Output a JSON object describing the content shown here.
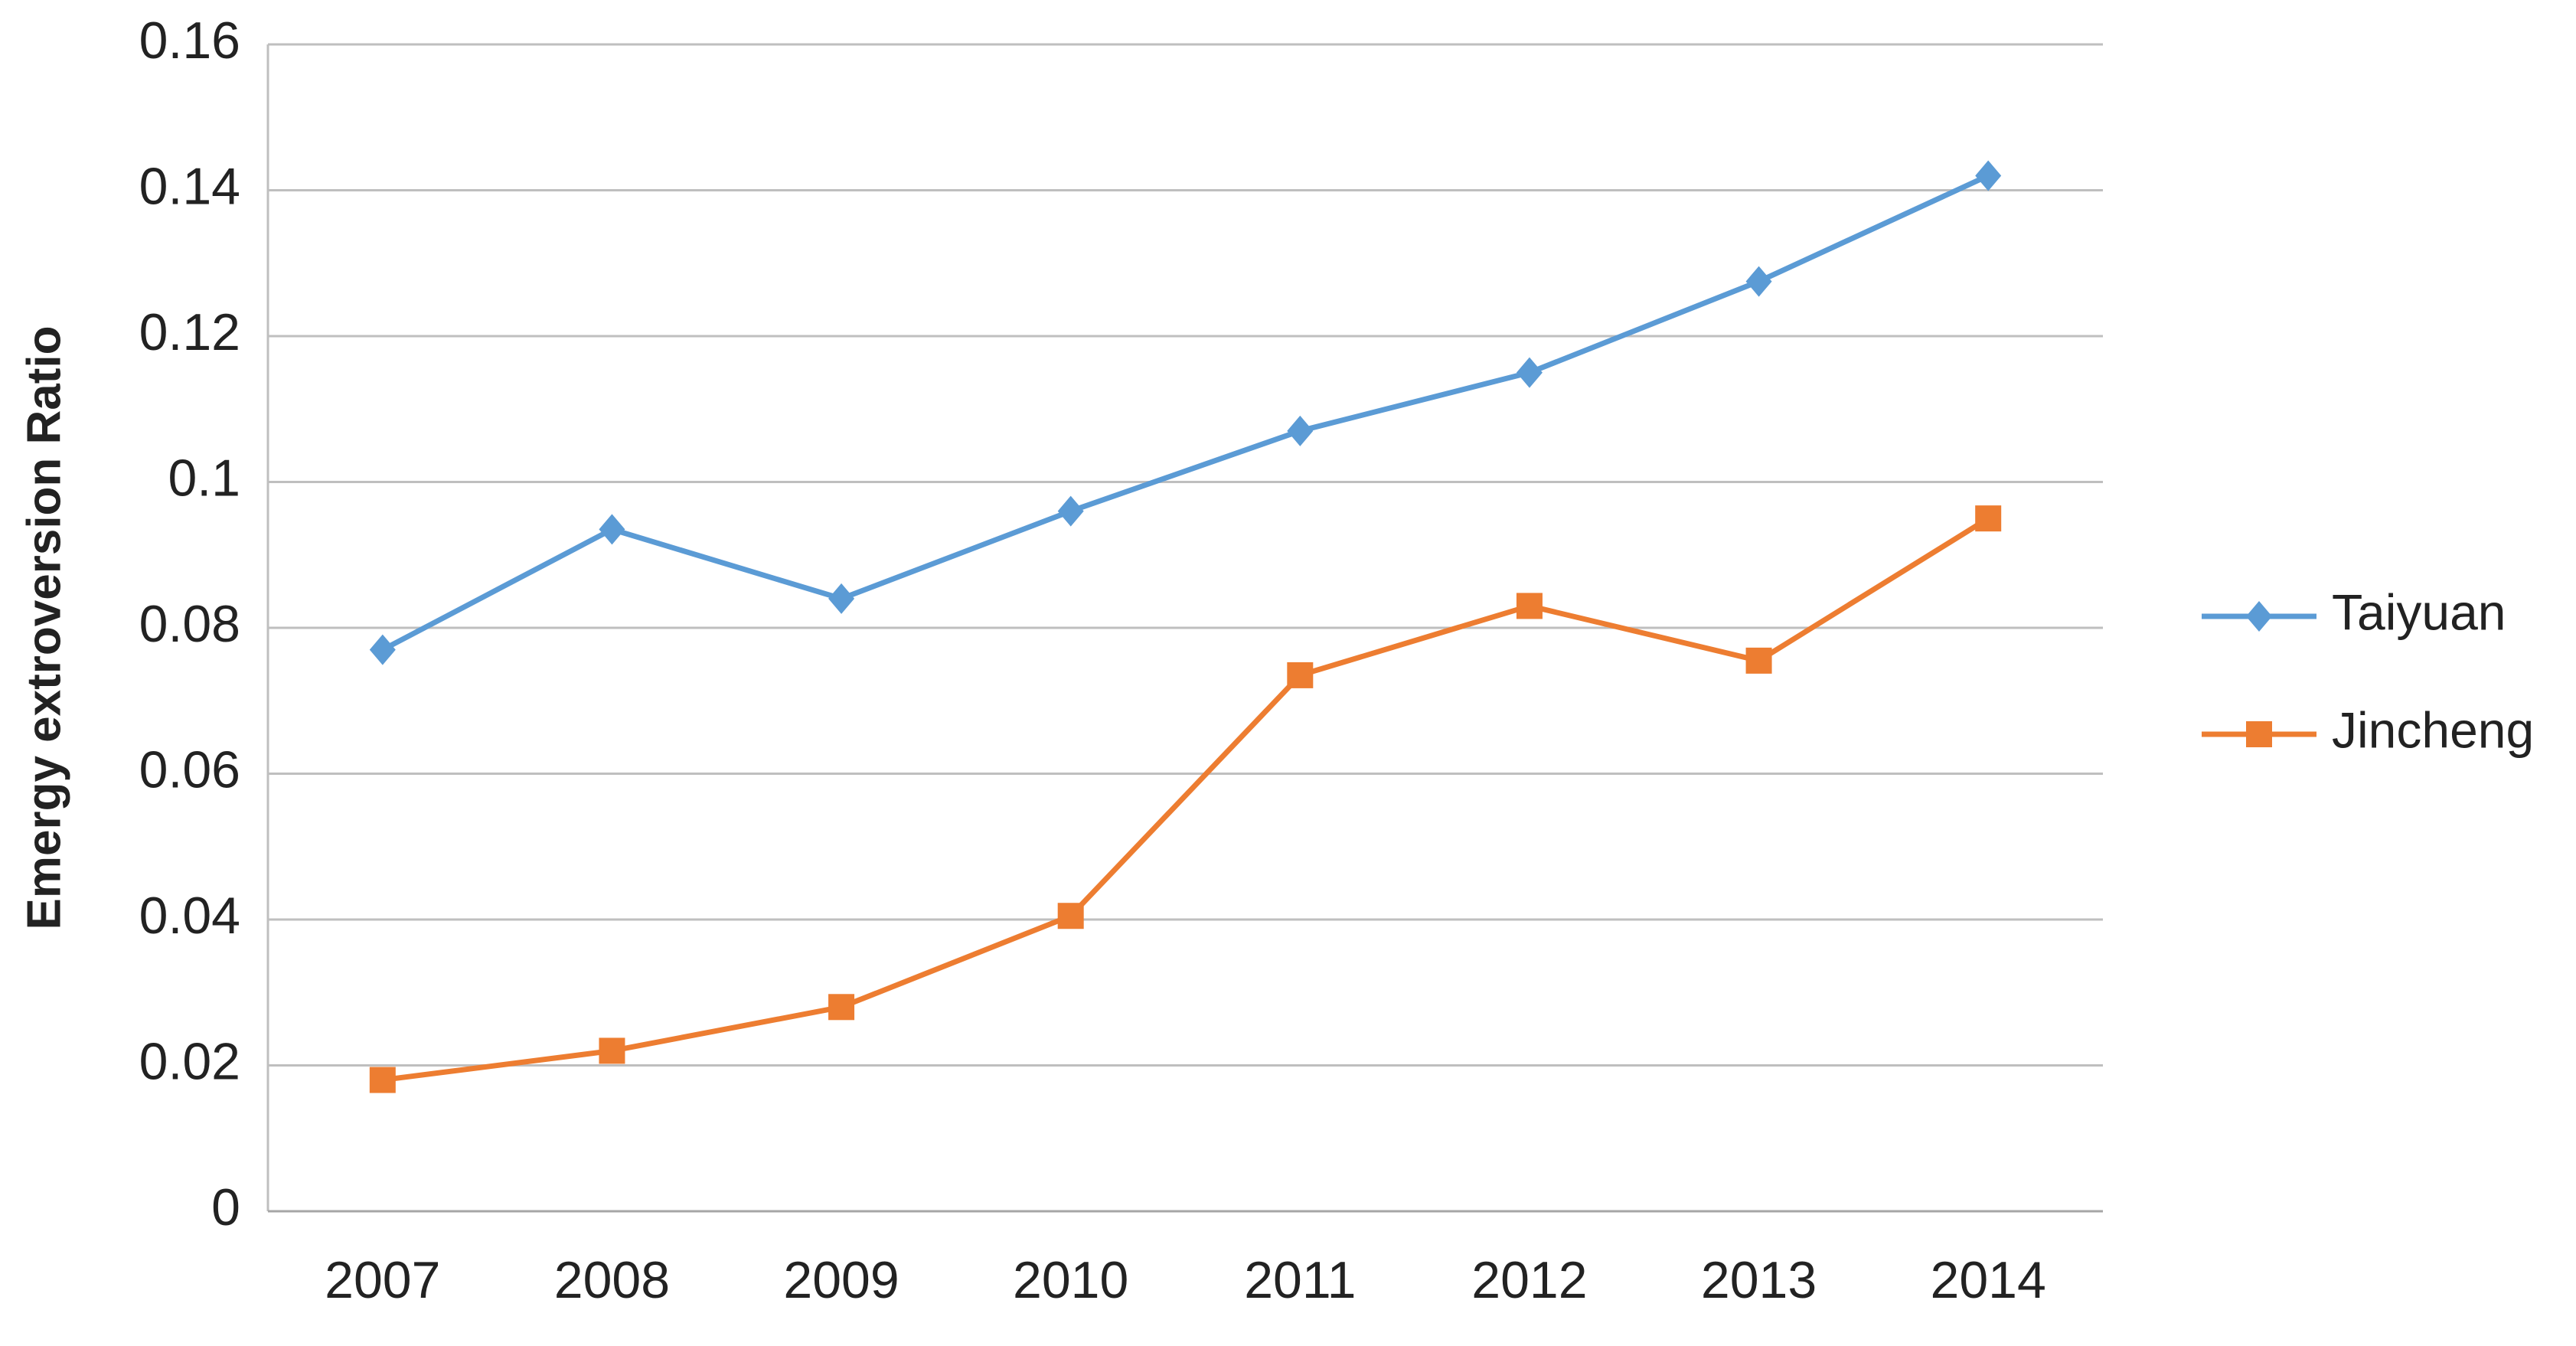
{
  "chart_data": {
    "type": "line",
    "y_label": "Emergy extroversion Ratio",
    "categories": [
      "2007",
      "2008",
      "2009",
      "2010",
      "2011",
      "2012",
      "2013",
      "2014"
    ],
    "series": [
      {
        "name": "Taiyuan",
        "color": "#5b9bd5",
        "marker": "diamond",
        "values": [
          0.077,
          0.0935,
          0.084,
          0.096,
          0.107,
          0.115,
          0.1275,
          0.142
        ]
      },
      {
        "name": "Jincheng",
        "color": "#ed7d31",
        "marker": "square",
        "values": [
          0.018,
          0.022,
          0.028,
          0.0405,
          0.0735,
          0.083,
          0.0755,
          0.095
        ]
      }
    ],
    "ylim": [
      0,
      0.16
    ],
    "yticks": [
      0,
      0.02,
      0.04,
      0.06,
      0.08,
      0.1,
      0.12,
      0.14,
      0.16
    ],
    "grid": true,
    "legend": "right"
  }
}
